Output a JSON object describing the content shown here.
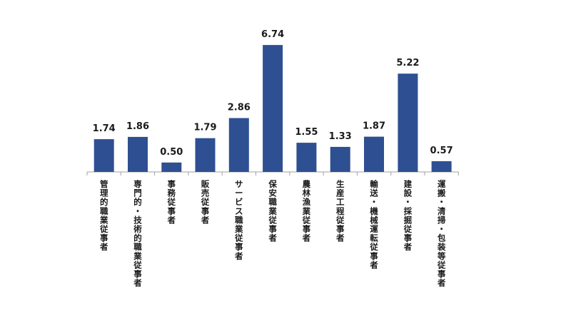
{
  "chart_data": {
    "type": "bar",
    "title": "",
    "xlabel": "",
    "ylabel": "",
    "ylim": [
      0,
      7.5
    ],
    "grid": false,
    "legend": "none",
    "bar_color": "#2e4f91",
    "categories": [
      "管理的職業従事者",
      "専門的・技術的職業従事者",
      "事務従事者",
      "販売従事者",
      "サービス職業従事者",
      "保安職業従事者",
      "農林漁業従事者",
      "生産工程従事者",
      "輸送・機械運転従事者",
      "建設・採掘従事者",
      "運搬・清掃・包装等従事者"
    ],
    "values": [
      1.74,
      1.86,
      0.5,
      1.79,
      2.86,
      6.74,
      1.55,
      1.33,
      1.87,
      5.22,
      0.57
    ],
    "value_labels": [
      "1.74",
      "1.86",
      "0.50",
      "1.79",
      "2.86",
      "6.74",
      "1.55",
      "1.33",
      "1.87",
      "5.22",
      "0.57"
    ]
  }
}
